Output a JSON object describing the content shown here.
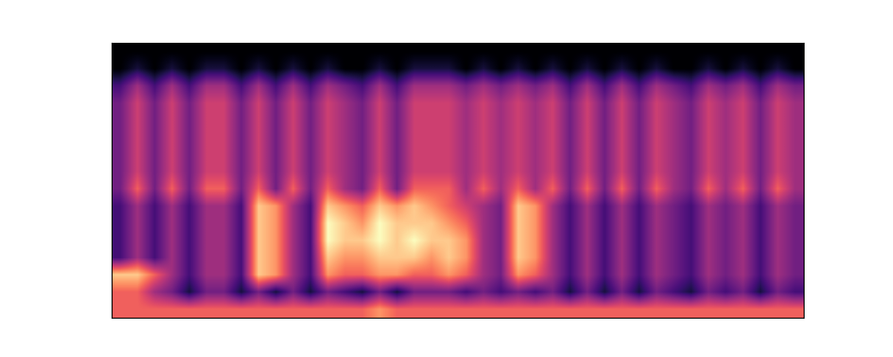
{
  "chart_data": {
    "type": "heatmap",
    "tick_labels": false,
    "cells": [
      [
        0,
        0,
        0,
        0,
        0,
        0,
        0,
        0,
        0,
        0,
        0,
        0,
        0,
        0,
        0,
        0,
        0,
        0,
        0,
        0,
        0,
        0,
        0,
        0,
        0,
        0,
        0,
        0,
        0,
        0,
        0,
        0,
        0,
        0,
        0,
        0,
        0,
        0,
        0,
        0
      ],
      [
        0,
        1,
        0,
        1,
        0,
        1,
        1,
        0,
        1,
        0,
        1,
        0,
        1,
        0,
        0,
        1,
        0,
        1,
        1,
        1,
        0,
        1,
        0,
        1,
        0,
        1,
        0,
        1,
        0,
        1,
        0,
        1,
        0,
        0,
        1,
        0,
        1,
        0,
        1,
        0
      ],
      [
        2,
        4,
        2,
        4,
        2,
        4,
        4,
        2,
        4,
        2,
        4,
        2,
        4,
        3,
        2,
        4,
        2,
        4,
        4,
        4,
        3,
        4,
        3,
        4,
        3,
        4,
        2,
        4,
        2,
        4,
        2,
        4,
        3,
        2,
        4,
        3,
        4,
        2,
        4,
        3
      ],
      [
        3,
        5,
        3,
        5,
        3,
        5,
        5,
        3,
        5,
        3,
        5,
        3,
        5,
        4,
        3,
        5,
        3,
        5,
        5,
        5,
        4,
        5,
        4,
        5,
        4,
        5,
        3,
        5,
        3,
        5,
        3,
        5,
        4,
        3,
        5,
        4,
        5,
        3,
        5,
        4
      ],
      [
        3,
        5,
        3,
        5,
        3,
        5,
        5,
        3,
        5,
        3,
        5,
        3,
        5,
        4,
        3,
        5,
        3,
        5,
        5,
        5,
        4,
        5,
        4,
        5,
        4,
        5,
        3,
        5,
        3,
        5,
        3,
        5,
        4,
        3,
        5,
        4,
        5,
        3,
        5,
        4
      ],
      [
        3,
        5,
        3,
        5,
        3,
        5,
        5,
        3,
        5,
        3,
        5,
        3,
        5,
        4,
        3,
        5,
        3,
        5,
        5,
        5,
        4,
        5,
        4,
        5,
        4,
        5,
        3,
        5,
        3,
        5,
        3,
        5,
        4,
        3,
        5,
        4,
        5,
        3,
        5,
        4
      ],
      [
        3,
        5,
        3,
        5,
        3,
        5,
        5,
        3,
        5,
        3,
        5,
        3,
        5,
        4,
        3,
        5,
        3,
        5,
        5,
        5,
        4,
        5,
        4,
        5,
        4,
        5,
        3,
        5,
        3,
        5,
        3,
        5,
        4,
        3,
        5,
        4,
        5,
        3,
        5,
        4
      ],
      [
        3,
        5,
        3,
        5,
        3,
        5,
        5,
        3,
        5,
        3,
        5,
        3,
        5,
        4,
        3,
        5,
        3,
        5,
        5,
        5,
        4,
        5,
        4,
        5,
        4,
        5,
        3,
        5,
        3,
        5,
        3,
        5,
        4,
        3,
        5,
        4,
        5,
        3,
        5,
        4
      ],
      [
        3,
        6,
        3,
        6,
        3,
        6,
        6,
        3,
        6,
        3,
        6,
        3,
        6,
        4,
        3,
        6,
        3,
        6,
        6,
        6,
        4,
        6,
        4,
        6,
        4,
        6,
        3,
        6,
        3,
        6,
        3,
        6,
        4,
        3,
        6,
        4,
        6,
        3,
        6,
        4
      ],
      [
        2,
        4,
        2,
        4,
        2,
        4,
        4,
        2,
        8,
        7,
        4,
        2,
        8,
        7,
        6,
        8,
        7,
        8,
        7,
        6,
        5,
        4,
        3,
        8,
        7,
        4,
        2,
        4,
        2,
        4,
        2,
        4,
        3,
        2,
        4,
        3,
        4,
        2,
        4,
        3
      ],
      [
        2,
        4,
        2,
        4,
        2,
        4,
        4,
        2,
        8,
        7,
        4,
        2,
        9,
        8,
        7,
        9,
        8,
        8,
        8,
        7,
        6,
        4,
        3,
        8,
        7,
        4,
        2,
        4,
        2,
        4,
        2,
        4,
        3,
        2,
        4,
        3,
        4,
        2,
        4,
        3
      ],
      [
        2,
        4,
        2,
        4,
        2,
        4,
        4,
        2,
        8,
        7,
        4,
        2,
        9,
        8,
        8,
        9,
        8,
        9,
        8,
        8,
        7,
        4,
        3,
        8,
        7,
        4,
        2,
        4,
        2,
        4,
        2,
        4,
        3,
        2,
        4,
        3,
        4,
        2,
        4,
        3
      ],
      [
        2,
        4,
        2,
        4,
        2,
        4,
        4,
        2,
        8,
        7,
        4,
        2,
        8,
        7,
        7,
        8,
        8,
        8,
        7,
        8,
        7,
        4,
        3,
        8,
        7,
        4,
        2,
        4,
        2,
        4,
        2,
        4,
        3,
        2,
        4,
        3,
        4,
        2,
        4,
        3
      ],
      [
        8,
        8,
        6,
        4,
        2,
        4,
        4,
        2,
        8,
        7,
        4,
        2,
        7,
        6,
        6,
        7,
        7,
        6,
        6,
        7,
        6,
        4,
        3,
        7,
        6,
        4,
        2,
        4,
        2,
        4,
        2,
        4,
        3,
        2,
        4,
        3,
        4,
        2,
        4,
        3
      ],
      [
        6,
        6,
        4,
        3,
        1,
        3,
        3,
        1,
        3,
        1,
        3,
        1,
        3,
        2,
        1,
        3,
        1,
        3,
        3,
        3,
        2,
        3,
        2,
        3,
        2,
        3,
        1,
        3,
        1,
        3,
        1,
        3,
        2,
        1,
        3,
        2,
        3,
        1,
        3,
        2
      ],
      [
        6,
        6,
        6,
        6,
        6,
        6,
        6,
        6,
        6,
        6,
        6,
        6,
        6,
        6,
        6,
        7,
        6,
        6,
        6,
        6,
        6,
        6,
        6,
        6,
        6,
        6,
        6,
        6,
        6,
        6,
        6,
        6,
        6,
        6,
        6,
        6,
        6,
        6,
        6,
        6
      ]
    ]
  }
}
